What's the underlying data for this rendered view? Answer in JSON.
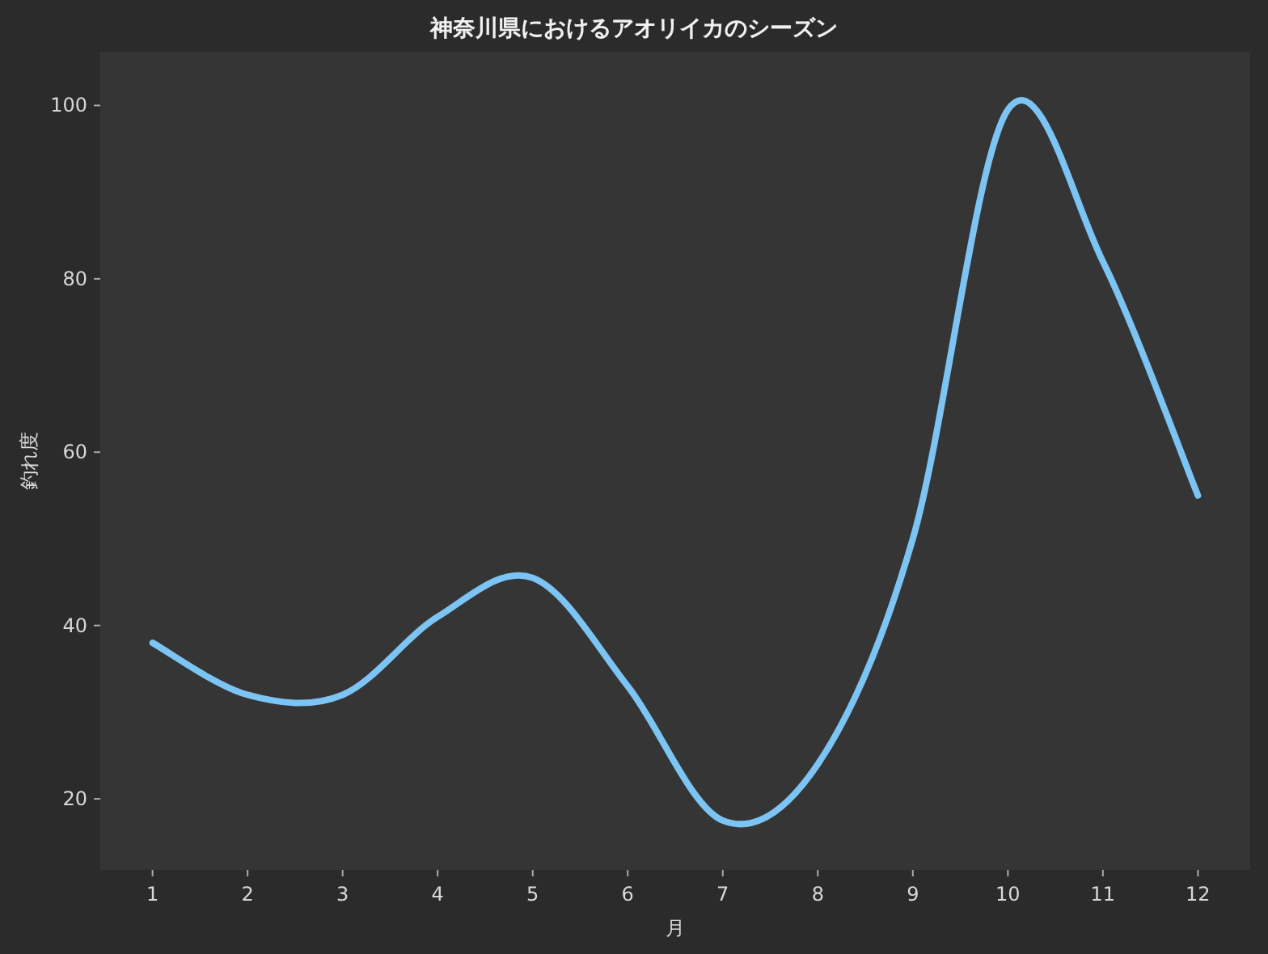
{
  "chart_data": {
    "type": "line",
    "title": "神奈川県におけるアオリイカのシーズン",
    "xlabel": "月",
    "ylabel": "釣れ度",
    "x": [
      1,
      2,
      3,
      4,
      5,
      6,
      7,
      8,
      9,
      10,
      11,
      12
    ],
    "series": [
      {
        "color": "#7cc4f4",
        "values": [
          38,
          32,
          32,
          41,
          45.5,
          33,
          17.5,
          24,
          50,
          99.5,
          82,
          55
        ]
      }
    ],
    "xlim": [
      0.45,
      12.55
    ],
    "ylim": [
      11.8,
      106.2
    ],
    "xticks": [
      1,
      2,
      3,
      4,
      5,
      6,
      7,
      8,
      9,
      10,
      11,
      12
    ],
    "yticks": [
      20,
      40,
      60,
      80,
      100
    ],
    "line_style": "solid",
    "marker": "none"
  }
}
